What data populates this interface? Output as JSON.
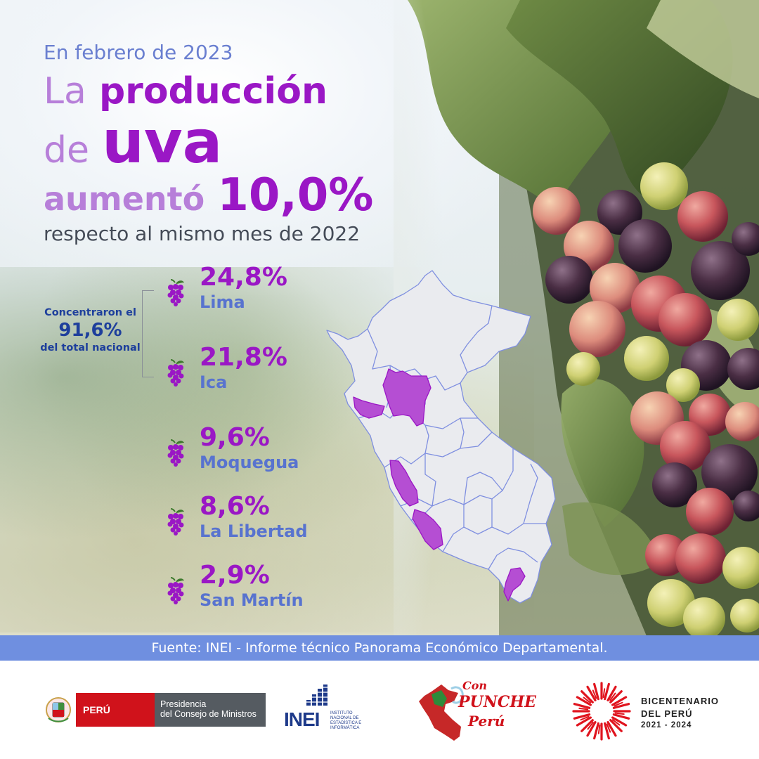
{
  "header": {
    "kicker": "En febrero de 2023",
    "line1_soft": "La",
    "line1_strong": "producción",
    "line2_soft": "de",
    "line2_strong": "uva",
    "line3_soft": "aumentó",
    "line3_strong": "10,0%",
    "subline": "respecto al mismo mes de 2022"
  },
  "note": {
    "line1": "Concentraron el",
    "value": "91,6%",
    "line3": "del total nacional"
  },
  "regions": [
    {
      "percent": "24,8%",
      "name": "Lima"
    },
    {
      "percent": "21,8%",
      "name": "Ica"
    },
    {
      "percent": "9,6%",
      "name": "Moquegua"
    },
    {
      "percent": "8,6%",
      "name": "La Libertad"
    },
    {
      "percent": "2,9%",
      "name": "San Martín"
    }
  ],
  "source": "Fuente: INEI - Informe técnico Panorama Económico Departamental.",
  "footer": {
    "pcm_badge": "PERÚ",
    "pcm_line1": "Presidencia",
    "pcm_line2": "del Consejo de Ministros",
    "inei_word": "INEI",
    "inei_small": "INSTITUTO NACIONAL DE ESTADÍSTICA E INFORMÁTICA",
    "punche_1": "Con",
    "punche_2": "PUNCHE",
    "punche_3": "Perú",
    "bicentenario_1": "BICENTENARIO",
    "bicentenario_2": "DEL PERÚ",
    "bicentenario_3": "2021 - 2024"
  },
  "colors": {
    "accent_purple": "#9a17c5",
    "soft_purple": "#b77fd9",
    "region_blue": "#5873cf",
    "note_blue": "#1e3f9c",
    "source_bar": "#6f8fe0",
    "peru_red": "#d0121b"
  }
}
